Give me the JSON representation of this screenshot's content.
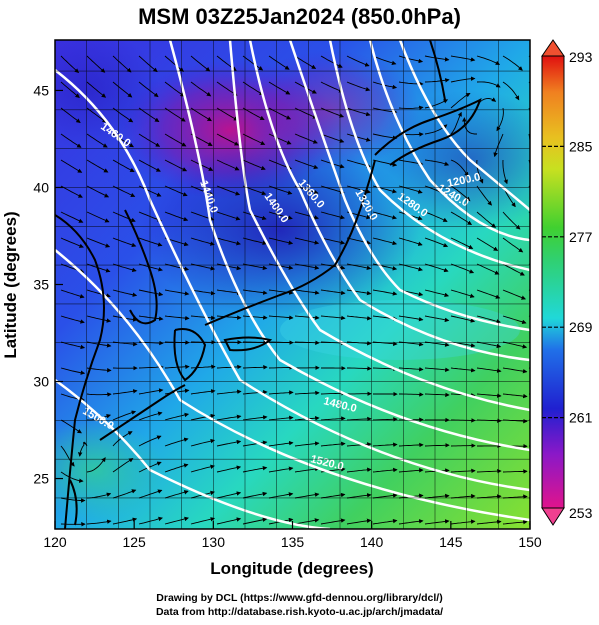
{
  "title": "MSM 03Z25Jan2024 (850.0hPa)",
  "xlabel": "Longitude (degrees)",
  "ylabel": "Latitude  (degrees)",
  "credits": {
    "line1": "Drawing by DCL (https://www.gfd-dennou.org/library/dcl/)",
    "line2": "Data from http://database.rish.kyoto-u.ac.jp/arch/jmadata/"
  },
  "axes": {
    "xlim": [
      120,
      150
    ],
    "ylim": [
      22.4,
      47.6
    ],
    "xticks": [
      "120",
      "125",
      "130",
      "135",
      "140",
      "145",
      "150"
    ],
    "yticks": [
      "25",
      "30",
      "35",
      "40",
      "45"
    ]
  },
  "colorbar": {
    "min": 253,
    "max": 293,
    "ticks": [
      "253",
      "261",
      "269",
      "277",
      "285",
      "293"
    ],
    "colors": [
      "#e0148c",
      "#2020d0",
      "#20d8d8",
      "#30d030",
      "#e8e820",
      "#e01010"
    ]
  },
  "contours": {
    "color": "#ffffff",
    "labels": [
      "1460.0",
      "1440.0",
      "1400.0",
      "1360.0",
      "1320.0",
      "1280.0",
      "1240.0",
      "1200.0",
      "1480.0",
      "1500.0",
      "1520.0"
    ]
  },
  "streamline_color": "#000000",
  "coast_color": "#000000"
}
